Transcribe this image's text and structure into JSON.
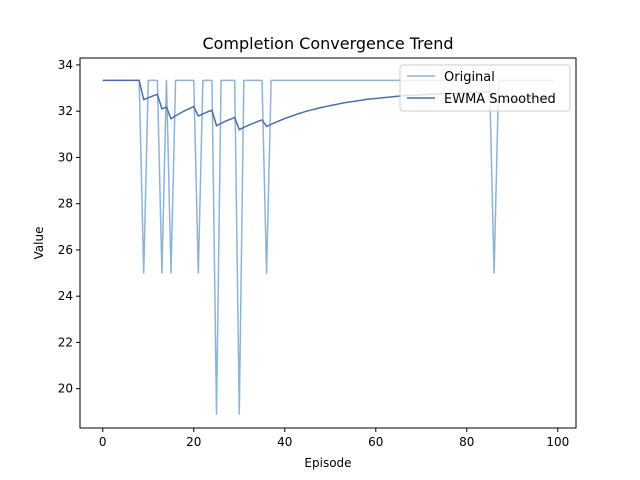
{
  "chart_data": {
    "type": "line",
    "title": "Completion Convergence Trend",
    "xlabel": "Episode",
    "ylabel": "Value",
    "xlim": [
      -5,
      104
    ],
    "ylim": [
      18.3,
      34.3
    ],
    "xticks": [
      0,
      20,
      40,
      60,
      80,
      100
    ],
    "yticks": [
      20,
      22,
      24,
      26,
      28,
      30,
      32,
      34
    ],
    "grid": false,
    "legend_position": "top-right",
    "x": [
      0,
      1,
      2,
      3,
      4,
      5,
      6,
      7,
      8,
      9,
      10,
      11,
      12,
      13,
      14,
      15,
      16,
      17,
      18,
      19,
      20,
      21,
      22,
      23,
      24,
      25,
      26,
      27,
      28,
      29,
      30,
      31,
      32,
      33,
      34,
      35,
      36,
      37,
      38,
      39,
      40,
      41,
      42,
      43,
      44,
      45,
      46,
      47,
      48,
      49,
      50,
      51,
      52,
      53,
      54,
      55,
      56,
      57,
      58,
      59,
      60,
      61,
      62,
      63,
      64,
      65,
      66,
      67,
      68,
      69,
      70,
      71,
      72,
      73,
      74,
      75,
      76,
      77,
      78,
      79,
      80,
      81,
      82,
      83,
      84,
      85,
      86,
      87,
      88,
      89,
      90,
      91,
      92,
      93,
      94,
      95,
      96,
      97,
      98,
      99
    ],
    "series": [
      {
        "name": "Original",
        "color": "#8fb3d6",
        "values": [
          33.33,
          33.33,
          33.33,
          33.33,
          33.33,
          33.33,
          33.33,
          33.33,
          33.33,
          25.0,
          33.33,
          33.33,
          33.33,
          25.0,
          33.33,
          25.0,
          33.33,
          33.33,
          33.33,
          33.33,
          33.33,
          25.0,
          33.33,
          33.33,
          33.33,
          18.9,
          33.33,
          33.33,
          33.33,
          33.33,
          18.9,
          33.33,
          33.33,
          33.33,
          33.33,
          33.33,
          25.0,
          33.33,
          33.33,
          33.33,
          33.33,
          33.33,
          33.33,
          33.33,
          33.33,
          33.33,
          33.33,
          33.33,
          33.33,
          33.33,
          33.33,
          33.33,
          33.33,
          33.33,
          33.33,
          33.33,
          33.33,
          33.33,
          33.33,
          33.33,
          33.33,
          33.33,
          33.33,
          33.33,
          33.33,
          33.33,
          33.33,
          33.33,
          33.33,
          33.33,
          33.33,
          33.33,
          33.33,
          33.33,
          33.33,
          33.33,
          33.33,
          33.33,
          33.33,
          33.33,
          33.33,
          33.33,
          33.33,
          33.33,
          33.33,
          33.33,
          25.0,
          33.33,
          33.33,
          33.33,
          33.33,
          33.33,
          33.33,
          33.33,
          33.33,
          33.33,
          33.33,
          33.33,
          33.33,
          33.33
        ]
      },
      {
        "name": "EWMA Smoothed",
        "color": "#4a6ea8",
        "values": [
          33.33,
          33.33,
          33.33,
          33.33,
          33.33,
          33.33,
          33.33,
          33.33,
          33.33,
          32.5,
          32.58,
          32.66,
          32.73,
          32.1,
          32.18,
          31.67,
          31.8,
          31.91,
          32.02,
          32.11,
          32.2,
          31.79,
          31.88,
          31.97,
          32.04,
          31.37,
          31.47,
          31.57,
          31.65,
          31.73,
          31.2,
          31.3,
          31.39,
          31.47,
          31.55,
          31.62,
          31.34,
          31.43,
          31.52,
          31.6,
          31.68,
          31.75,
          31.82,
          31.89,
          31.95,
          32.01,
          32.06,
          32.11,
          32.16,
          32.2,
          32.24,
          32.28,
          32.32,
          32.36,
          32.39,
          32.42,
          32.45,
          32.48,
          32.51,
          32.53,
          32.55,
          32.57,
          32.59,
          32.61,
          32.63,
          32.65,
          32.66,
          32.68,
          32.69,
          32.7,
          32.71,
          32.72,
          32.73,
          32.74,
          32.75,
          32.76,
          32.77,
          32.78,
          32.79,
          32.8,
          32.8,
          32.81,
          32.82,
          32.82,
          32.83,
          32.83,
          32.4,
          32.42,
          32.44,
          32.46,
          32.48,
          32.5,
          32.52,
          32.54,
          32.56,
          32.58,
          32.6,
          32.62,
          32.64,
          32.66
        ]
      }
    ]
  }
}
